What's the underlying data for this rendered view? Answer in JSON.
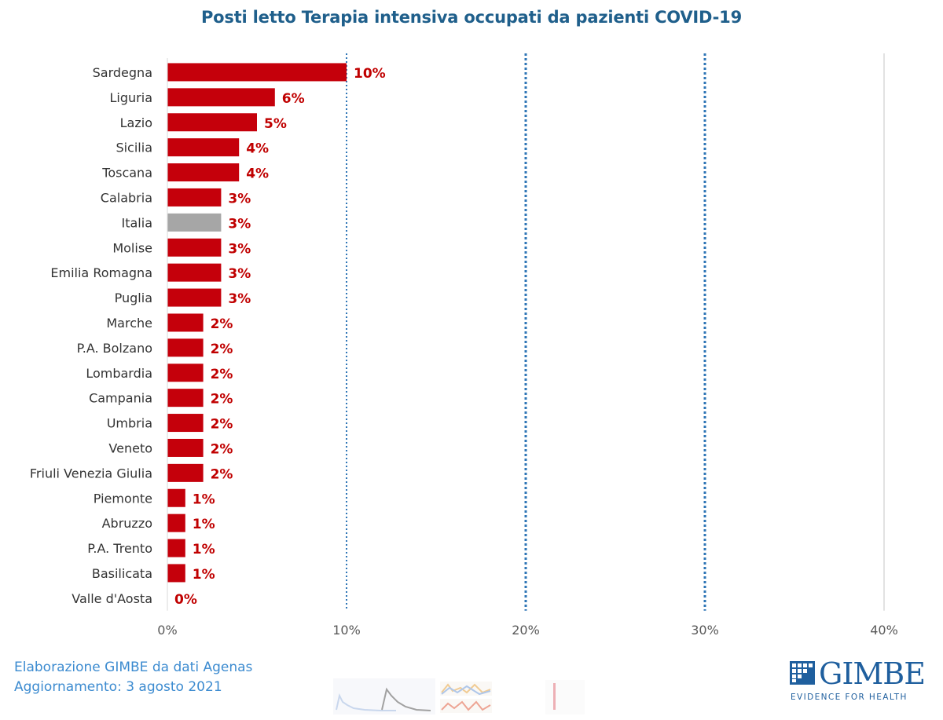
{
  "chart_data": {
    "type": "bar",
    "orientation": "horizontal",
    "title": "Posti letto Terapia  intensiva occupati da pazienti COVID-19",
    "categories": [
      "Sardegna",
      "Liguria",
      "Lazio",
      "Sicilia",
      "Toscana",
      "Calabria",
      "Italia",
      "Molise",
      "Emilia Romagna",
      "Puglia",
      "Marche",
      "P.A. Bolzano",
      "Lombardia",
      "Campania",
      "Umbria",
      "Veneto",
      "Friuli Venezia Giulia",
      "Piemonte",
      "Abruzzo",
      "P.A. Trento",
      "Basilicata",
      "Valle d'Aosta"
    ],
    "values": [
      10,
      6,
      5,
      4,
      4,
      3,
      3,
      3,
      3,
      3,
      2,
      2,
      2,
      2,
      2,
      2,
      2,
      1,
      1,
      1,
      1,
      0
    ],
    "value_labels": [
      "10%",
      "6%",
      "5%",
      "4%",
      "4%",
      "3%",
      "3%",
      "3%",
      "3%",
      "3%",
      "2%",
      "2%",
      "2%",
      "2%",
      "2%",
      "2%",
      "2%",
      "1%",
      "1%",
      "1%",
      "1%",
      "0%"
    ],
    "highlight_category": "Italia",
    "xlim": [
      0,
      40
    ],
    "xticks": [
      0,
      10,
      20,
      30,
      40
    ],
    "xtick_labels": [
      "0%",
      "10%",
      "20%",
      "30%",
      "40%"
    ],
    "reference_lines": [
      10,
      20,
      30
    ],
    "colors": {
      "bar": "#c5000b",
      "highlight_bar": "#a6a6a6",
      "value_label": "#c00000",
      "reference_line": "#2e75b6",
      "grid": "#d9d9d9",
      "title": "#1f5f8b"
    }
  },
  "footer": {
    "source": "Elaborazione GIMBE da dati Agenas",
    "update": "Aggiornamento: 3 agosto 2021"
  },
  "logo": {
    "name": "GIMBE",
    "tagline": "EVIDENCE FOR HEALTH"
  }
}
